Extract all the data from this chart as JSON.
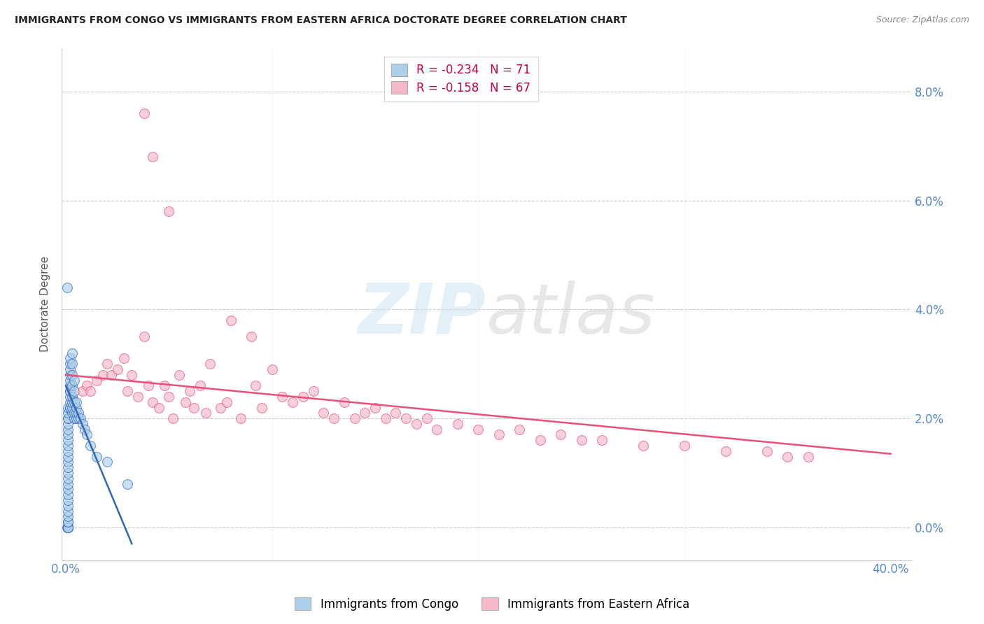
{
  "title": "IMMIGRANTS FROM CONGO VS IMMIGRANTS FROM EASTERN AFRICA DOCTORATE DEGREE CORRELATION CHART",
  "source": "Source: ZipAtlas.com",
  "ylabel": "Doctorate Degree",
  "ytick_labels": [
    "0.0%",
    "2.0%",
    "4.0%",
    "6.0%",
    "8.0%"
  ],
  "ytick_values": [
    0.0,
    0.02,
    0.04,
    0.06,
    0.08
  ],
  "xtick_values": [
    0.0,
    0.1,
    0.2,
    0.3,
    0.4
  ],
  "xlim": [
    -0.002,
    0.41
  ],
  "ylim": [
    -0.006,
    0.088
  ],
  "legend1_label": "R = -0.234   N = 71",
  "legend2_label": "R = -0.158   N = 67",
  "legend1_color": "#add0ea",
  "legend2_color": "#f5b8c8",
  "line1_color": "#3366bb",
  "line2_color": "#e8507a",
  "watermark_zip": "ZIP",
  "watermark_atlas": "atlas",
  "background_color": "#ffffff",
  "legend_label_bottom1": "Immigrants from Congo",
  "legend_label_bottom2": "Immigrants from Eastern Africa",
  "congo_x": [
    0.0005,
    0.0008,
    0.001,
    0.001,
    0.001,
    0.001,
    0.001,
    0.001,
    0.001,
    0.001,
    0.001,
    0.001,
    0.001,
    0.001,
    0.001,
    0.001,
    0.001,
    0.001,
    0.001,
    0.001,
    0.001,
    0.001,
    0.001,
    0.001,
    0.001,
    0.001,
    0.001,
    0.001,
    0.001,
    0.001,
    0.001,
    0.001,
    0.002,
    0.002,
    0.002,
    0.002,
    0.002,
    0.002,
    0.002,
    0.002,
    0.002,
    0.002,
    0.002,
    0.002,
    0.003,
    0.003,
    0.003,
    0.003,
    0.003,
    0.003,
    0.003,
    0.003,
    0.004,
    0.004,
    0.004,
    0.004,
    0.004,
    0.005,
    0.005,
    0.005,
    0.005,
    0.006,
    0.006,
    0.007,
    0.008,
    0.009,
    0.01,
    0.012,
    0.015,
    0.02,
    0.03
  ],
  "congo_y": [
    0.044,
    0.0,
    0.0,
    0.0,
    0.0,
    0.0,
    0.0,
    0.0,
    0.001,
    0.001,
    0.002,
    0.003,
    0.004,
    0.005,
    0.006,
    0.007,
    0.008,
    0.009,
    0.01,
    0.011,
    0.012,
    0.013,
    0.014,
    0.015,
    0.016,
    0.017,
    0.018,
    0.019,
    0.02,
    0.02,
    0.021,
    0.022,
    0.022,
    0.022,
    0.023,
    0.024,
    0.025,
    0.025,
    0.026,
    0.027,
    0.028,
    0.029,
    0.03,
    0.031,
    0.021,
    0.022,
    0.023,
    0.024,
    0.026,
    0.028,
    0.03,
    0.032,
    0.02,
    0.021,
    0.023,
    0.025,
    0.027,
    0.02,
    0.021,
    0.022,
    0.023,
    0.02,
    0.021,
    0.02,
    0.019,
    0.018,
    0.017,
    0.015,
    0.013,
    0.012,
    0.008
  ],
  "eastern_x": [
    0.008,
    0.01,
    0.012,
    0.015,
    0.018,
    0.02,
    0.022,
    0.025,
    0.028,
    0.03,
    0.032,
    0.035,
    0.038,
    0.04,
    0.042,
    0.045,
    0.048,
    0.05,
    0.052,
    0.055,
    0.058,
    0.06,
    0.062,
    0.065,
    0.068,
    0.07,
    0.075,
    0.078,
    0.08,
    0.085,
    0.09,
    0.092,
    0.095,
    0.1,
    0.105,
    0.11,
    0.115,
    0.12,
    0.125,
    0.13,
    0.135,
    0.14,
    0.145,
    0.15,
    0.155,
    0.16,
    0.165,
    0.17,
    0.175,
    0.18,
    0.19,
    0.2,
    0.21,
    0.22,
    0.23,
    0.24,
    0.25,
    0.26,
    0.28,
    0.3,
    0.32,
    0.34,
    0.36,
    0.038,
    0.042,
    0.05,
    0.35
  ],
  "eastern_y": [
    0.025,
    0.026,
    0.025,
    0.027,
    0.028,
    0.03,
    0.028,
    0.029,
    0.031,
    0.025,
    0.028,
    0.024,
    0.035,
    0.026,
    0.023,
    0.022,
    0.026,
    0.024,
    0.02,
    0.028,
    0.023,
    0.025,
    0.022,
    0.026,
    0.021,
    0.03,
    0.022,
    0.023,
    0.038,
    0.02,
    0.035,
    0.026,
    0.022,
    0.029,
    0.024,
    0.023,
    0.024,
    0.025,
    0.021,
    0.02,
    0.023,
    0.02,
    0.021,
    0.022,
    0.02,
    0.021,
    0.02,
    0.019,
    0.02,
    0.018,
    0.019,
    0.018,
    0.017,
    0.018,
    0.016,
    0.017,
    0.016,
    0.016,
    0.015,
    0.015,
    0.014,
    0.014,
    0.013,
    0.076,
    0.068,
    0.058,
    0.013
  ],
  "congo_line_x": [
    0.0,
    0.032
  ],
  "congo_line_y": [
    0.026,
    -0.003
  ],
  "eastern_line_x": [
    0.0,
    0.4
  ],
  "eastern_line_y": [
    0.028,
    0.0135
  ]
}
